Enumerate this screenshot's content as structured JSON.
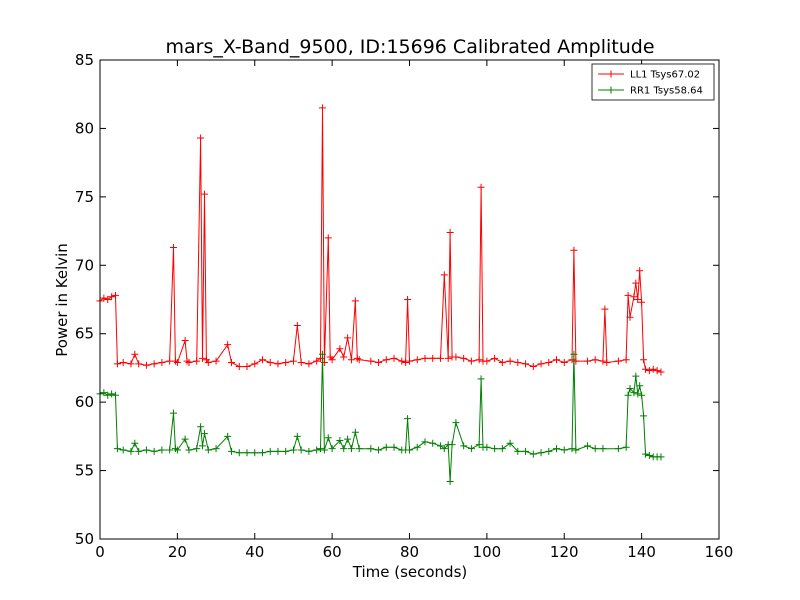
{
  "chart_data": {
    "type": "line",
    "title": "mars_X-Band_9500, ID:15696 Calibrated Amplitude",
    "xlabel": "Time (seconds)",
    "ylabel": "Power in Kelvin",
    "xlim": [
      0,
      160
    ],
    "ylim": [
      50,
      85
    ],
    "xticks": [
      0,
      20,
      40,
      60,
      80,
      100,
      120,
      140,
      160
    ],
    "yticks": [
      50,
      55,
      60,
      65,
      70,
      75,
      80,
      85
    ],
    "legend_position": "top-right",
    "grid": false,
    "series": [
      {
        "name": "LL1 Tsys67.02",
        "color": "#ff0000",
        "x": [
          0,
          1,
          2,
          3,
          4,
          4.5,
          6,
          8,
          9,
          10,
          12,
          14,
          16,
          18,
          19,
          19.5,
          20,
          22,
          22.5,
          23,
          25,
          26,
          26.5,
          27,
          27.5,
          28,
          30,
          33,
          34,
          36,
          38,
          40,
          42,
          44,
          46,
          48,
          50,
          51,
          52,
          54,
          56,
          57,
          57.5,
          58,
          59,
          59.5,
          60,
          62,
          63,
          64,
          65,
          66,
          66.5,
          67,
          70,
          72,
          74,
          76,
          78,
          79,
          79.5,
          80,
          82,
          84,
          86,
          88,
          89,
          90,
          90.5,
          91,
          92,
          94,
          96,
          98,
          98.5,
          99,
          100,
          102,
          104,
          106,
          108,
          110,
          112,
          114,
          116,
          118,
          120,
          122,
          122.5,
          123,
          126,
          128,
          130,
          130.5,
          131,
          134,
          136,
          136.5,
          137,
          138,
          138.5,
          139,
          139.5,
          140,
          140.5,
          141,
          142,
          143,
          144,
          145
        ],
        "values": [
          67.4,
          67.6,
          67.5,
          67.7,
          67.8,
          62.8,
          62.9,
          62.8,
          63.5,
          62.8,
          62.7,
          62.8,
          62.9,
          63.0,
          71.3,
          63.0,
          62.9,
          64.5,
          63.0,
          62.9,
          63.0,
          79.3,
          63.2,
          75.2,
          63.1,
          62.9,
          63.0,
          64.2,
          62.9,
          62.6,
          62.6,
          62.8,
          63.1,
          62.9,
          62.8,
          62.9,
          63.0,
          65.6,
          62.9,
          62.8,
          63.0,
          63.2,
          81.5,
          62.9,
          72.0,
          63.3,
          63.1,
          63.9,
          63.3,
          64.7,
          63.1,
          67.4,
          63.2,
          63.1,
          63.0,
          62.9,
          63.1,
          63.2,
          63.0,
          62.9,
          67.5,
          63.0,
          63.1,
          63.2,
          63.2,
          63.2,
          69.3,
          63.2,
          72.4,
          63.3,
          63.3,
          63.2,
          63.0,
          63.1,
          75.7,
          63.0,
          63.0,
          63.2,
          62.9,
          63.0,
          62.9,
          62.8,
          62.6,
          62.8,
          62.9,
          63.1,
          62.9,
          63.1,
          71.1,
          63.0,
          63.0,
          63.1,
          63.0,
          66.8,
          62.9,
          63.0,
          63.1,
          67.8,
          66.2,
          67.7,
          68.7,
          67.5,
          69.6,
          67.3,
          63.1,
          62.4,
          62.3,
          62.4,
          62.3,
          62.2
        ]
      },
      {
        "name": "RR1 Tsys58.64",
        "color": "#008000",
        "x": [
          0,
          1,
          2,
          3,
          4,
          4.5,
          6,
          8,
          9,
          10,
          12,
          14,
          16,
          18,
          19,
          19.5,
          20,
          22,
          23,
          25,
          26,
          26.5,
          27,
          28,
          30,
          33,
          34,
          36,
          38,
          40,
          42,
          44,
          46,
          48,
          50,
          51,
          52,
          54,
          56,
          57,
          57.5,
          58,
          59,
          60,
          62,
          63,
          64,
          65,
          66,
          67,
          70,
          72,
          74,
          76,
          78,
          79,
          79.5,
          80,
          82,
          84,
          86,
          88,
          89,
          90,
          90.5,
          91,
          92,
          94,
          96,
          98,
          98.5,
          99,
          100,
          102,
          104,
          106,
          108,
          110,
          112,
          114,
          116,
          118,
          120,
          122,
          122.5,
          123,
          126,
          128,
          130,
          134,
          136,
          136.5,
          137,
          138,
          138.5,
          139,
          139.5,
          140,
          140.5,
          141,
          142,
          143,
          144,
          145
        ],
        "values": [
          60.6,
          60.7,
          60.5,
          60.6,
          60.5,
          56.6,
          56.5,
          56.4,
          57.0,
          56.4,
          56.5,
          56.4,
          56.5,
          56.5,
          59.2,
          56.6,
          56.5,
          57.3,
          56.5,
          56.6,
          58.2,
          56.8,
          57.7,
          56.5,
          56.6,
          57.5,
          56.4,
          56.3,
          56.3,
          56.3,
          56.3,
          56.4,
          56.4,
          56.4,
          56.5,
          57.5,
          56.5,
          56.4,
          56.5,
          56.6,
          63.5,
          56.5,
          57.4,
          56.6,
          57.2,
          56.6,
          57.3,
          56.6,
          57.8,
          56.6,
          56.6,
          56.5,
          56.7,
          56.7,
          56.5,
          56.5,
          58.8,
          56.5,
          56.7,
          57.1,
          57.0,
          56.8,
          56.6,
          56.9,
          54.2,
          56.9,
          58.5,
          56.8,
          56.6,
          56.9,
          61.7,
          56.7,
          56.7,
          56.6,
          56.6,
          57.0,
          56.4,
          56.4,
          56.2,
          56.3,
          56.4,
          56.6,
          56.5,
          56.6,
          63.5,
          56.5,
          56.8,
          56.6,
          56.6,
          56.6,
          56.7,
          60.5,
          61.0,
          60.7,
          61.9,
          60.6,
          61.2,
          60.5,
          59.0,
          56.2,
          56.1,
          56.0,
          56.0,
          56.0
        ]
      }
    ]
  }
}
